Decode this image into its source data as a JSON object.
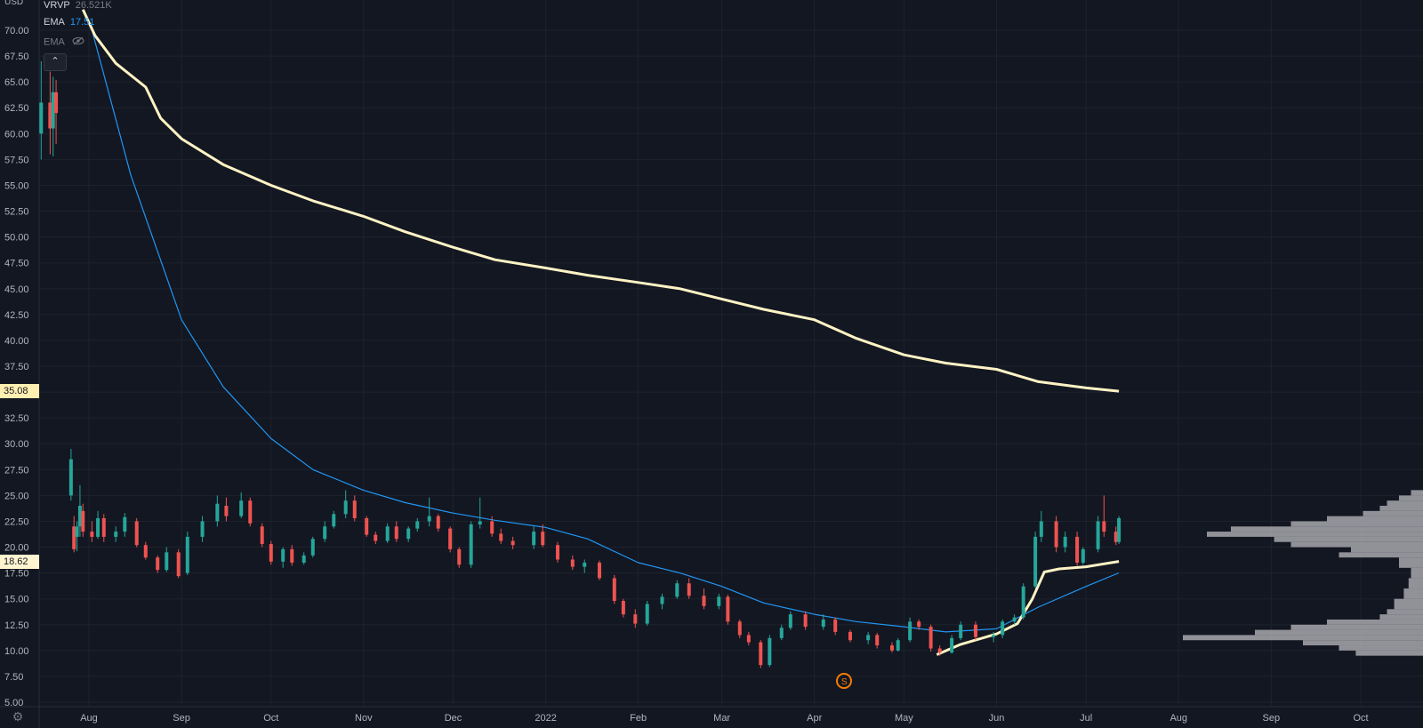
{
  "colors": {
    "background": "#131722",
    "grid": "#1e222d",
    "axis_text": "#b2b5be",
    "up": "#26a69a",
    "down": "#ef5350",
    "ema_fast": "#2196f3",
    "ema_slow": "#fff3c4",
    "vrvp": "#a8a8ad",
    "badge_slow": "#ffefb0",
    "badge_price": "#fff5d0"
  },
  "legend": [
    {
      "name": "VRVP",
      "value": "26.521K",
      "value_color": "#787b86",
      "label_color": "#d1d4dc"
    },
    {
      "name": "EMA",
      "value": "17.51",
      "value_color": "#2196f3",
      "label_color": "#d1d4dc"
    },
    {
      "name": "EMA",
      "value": "",
      "value_color": "#787b86",
      "label_color": "#787b86",
      "hidden_icon": "eye-crossed-icon"
    }
  ],
  "collapse_icon": "chevron-up-icon",
  "price_badges": [
    {
      "label": "35.08",
      "value": 35.08,
      "color": "#ffefb0"
    },
    {
      "label": "18.62",
      "value": 18.62,
      "color": "#fff5d0"
    }
  ],
  "event_marker": {
    "label": "S",
    "icon": "split-event-icon",
    "date": "2022-04-11"
  },
  "settings_icon": "gear-icon",
  "chart_data": {
    "type": "candlestick",
    "currency": "USD",
    "y_ticks": [
      "5.00",
      "7.50",
      "10.00",
      "12.50",
      "15.00",
      "17.50",
      "20.00",
      "22.50",
      "25.00",
      "27.50",
      "30.00",
      "32.50",
      "35.00",
      "37.50",
      "40.00",
      "42.50",
      "45.00",
      "47.50",
      "50.00",
      "52.50",
      "55.00",
      "57.50",
      "60.00",
      "62.50",
      "65.00",
      "67.50",
      "70.00"
    ],
    "ylim": [
      5.0,
      72.0
    ],
    "x_ticks": [
      {
        "label": "Aug",
        "date": "2021-08-01"
      },
      {
        "label": "Sep",
        "date": "2021-09-01"
      },
      {
        "label": "Oct",
        "date": "2021-10-01"
      },
      {
        "label": "Nov",
        "date": "2021-11-01"
      },
      {
        "label": "Dec",
        "date": "2021-12-01"
      },
      {
        "label": "2022",
        "date": "2022-01-01"
      },
      {
        "label": "Feb",
        "date": "2022-02-01"
      },
      {
        "label": "Mar",
        "date": "2022-03-01"
      },
      {
        "label": "Apr",
        "date": "2022-04-01"
      },
      {
        "label": "May",
        "date": "2022-05-01"
      },
      {
        "label": "Jun",
        "date": "2022-06-01"
      },
      {
        "label": "Jul",
        "date": "2022-07-01"
      },
      {
        "label": "Aug",
        "date": "2022-08-01"
      },
      {
        "label": "Sep",
        "date": "2022-09-01"
      },
      {
        "label": "Oct",
        "date": "2022-10-01"
      }
    ],
    "candles": [
      [
        "2021-07-16",
        60.0,
        67.0,
        57.5,
        63.0
      ],
      [
        "2021-07-19",
        63.0,
        66.0,
        58.0,
        60.5
      ],
      [
        "2021-07-20",
        60.5,
        65.5,
        57.8,
        64.0
      ],
      [
        "2021-07-21",
        64.0,
        65.2,
        59.0,
        62.0
      ],
      [
        "2021-07-26",
        25.0,
        29.5,
        24.5,
        28.5
      ],
      [
        "2021-07-27",
        22.0,
        23.0,
        19.5,
        19.8
      ],
      [
        "2021-07-28",
        21.0,
        22.5,
        19.6,
        22.0
      ],
      [
        "2021-07-29",
        22.0,
        26.0,
        21.0,
        24.0
      ],
      [
        "2021-07-30",
        23.5,
        24.2,
        21.0,
        21.5
      ],
      [
        "2021-08-02",
        21.5,
        22.5,
        20.5,
        21.0
      ],
      [
        "2021-08-04",
        21.0,
        23.5,
        20.8,
        22.8
      ],
      [
        "2021-08-06",
        22.8,
        23.2,
        20.5,
        21.0
      ],
      [
        "2021-08-10",
        21.0,
        22.0,
        20.5,
        21.5
      ],
      [
        "2021-08-13",
        21.5,
        23.3,
        21.0,
        22.9
      ],
      [
        "2021-08-17",
        22.5,
        22.8,
        20.0,
        20.2
      ],
      [
        "2021-08-20",
        20.2,
        20.5,
        18.8,
        19.0
      ],
      [
        "2021-08-24",
        19.0,
        19.2,
        17.5,
        17.8
      ],
      [
        "2021-08-27",
        17.8,
        20.0,
        17.6,
        19.5
      ],
      [
        "2021-08-31",
        19.5,
        19.8,
        17.0,
        17.2
      ],
      [
        "2021-09-03",
        17.5,
        21.5,
        17.3,
        21.0
      ],
      [
        "2021-09-08",
        21.0,
        23.0,
        20.5,
        22.5
      ],
      [
        "2021-09-13",
        22.5,
        25.0,
        22.0,
        24.2
      ],
      [
        "2021-09-16",
        24.0,
        24.8,
        22.5,
        23.0
      ],
      [
        "2021-09-21",
        23.0,
        25.3,
        22.8,
        24.5
      ],
      [
        "2021-09-24",
        24.5,
        24.8,
        22.0,
        22.3
      ],
      [
        "2021-09-28",
        22.0,
        22.3,
        20.0,
        20.3
      ],
      [
        "2021-10-01",
        20.3,
        20.6,
        18.3,
        18.6
      ],
      [
        "2021-10-05",
        18.6,
        20.0,
        18.0,
        19.8
      ],
      [
        "2021-10-08",
        19.8,
        20.2,
        18.2,
        18.5
      ],
      [
        "2021-10-12",
        18.5,
        19.5,
        18.3,
        19.2
      ],
      [
        "2021-10-15",
        19.2,
        21.0,
        19.0,
        20.8
      ],
      [
        "2021-10-19",
        20.8,
        22.5,
        20.5,
        22.0
      ],
      [
        "2021-10-22",
        22.0,
        23.5,
        21.8,
        23.2
      ],
      [
        "2021-10-26",
        23.2,
        25.5,
        22.8,
        24.5
      ],
      [
        "2021-10-29",
        24.5,
        25.0,
        22.5,
        22.8
      ],
      [
        "2021-11-02",
        22.8,
        23.0,
        21.0,
        21.2
      ],
      [
        "2021-11-05",
        21.2,
        21.5,
        20.3,
        20.6
      ],
      [
        "2021-11-09",
        20.6,
        22.3,
        20.4,
        22.0
      ],
      [
        "2021-11-12",
        22.0,
        22.5,
        20.5,
        20.8
      ],
      [
        "2021-11-16",
        20.8,
        22.0,
        20.5,
        21.8
      ],
      [
        "2021-11-19",
        21.8,
        22.8,
        21.5,
        22.5
      ],
      [
        "2021-11-23",
        22.5,
        24.8,
        22.0,
        23.0
      ],
      [
        "2021-11-26",
        23.0,
        23.2,
        21.5,
        21.8
      ],
      [
        "2021-11-30",
        21.8,
        22.0,
        19.5,
        19.8
      ],
      [
        "2021-12-03",
        19.8,
        20.0,
        18.0,
        18.3
      ],
      [
        "2021-12-07",
        18.3,
        22.5,
        18.0,
        22.2
      ],
      [
        "2021-12-10",
        22.2,
        24.8,
        21.8,
        22.5
      ],
      [
        "2021-12-14",
        22.5,
        23.0,
        21.0,
        21.3
      ],
      [
        "2021-12-17",
        21.3,
        21.8,
        20.3,
        20.6
      ],
      [
        "2021-12-21",
        20.6,
        21.0,
        19.8,
        20.2
      ],
      [
        "2021-12-28",
        20.2,
        22.0,
        19.8,
        21.5
      ],
      [
        "2021-12-31",
        21.5,
        22.2,
        20.0,
        20.2
      ],
      [
        "2022-01-05",
        20.2,
        20.5,
        18.5,
        18.8
      ],
      [
        "2022-01-10",
        18.8,
        19.2,
        17.8,
        18.1
      ],
      [
        "2022-01-14",
        18.1,
        18.8,
        17.5,
        18.5
      ],
      [
        "2022-01-19",
        18.5,
        18.7,
        16.8,
        17.0
      ],
      [
        "2022-01-24",
        17.0,
        17.3,
        14.5,
        14.8
      ],
      [
        "2022-01-27",
        14.8,
        15.0,
        13.2,
        13.5
      ],
      [
        "2022-01-31",
        13.5,
        14.0,
        12.2,
        12.6
      ],
      [
        "2022-02-04",
        12.6,
        14.8,
        12.4,
        14.5
      ],
      [
        "2022-02-09",
        14.5,
        15.5,
        14.0,
        15.2
      ],
      [
        "2022-02-14",
        15.2,
        16.8,
        15.0,
        16.5
      ],
      [
        "2022-02-18",
        16.5,
        17.0,
        15.0,
        15.3
      ],
      [
        "2022-02-23",
        15.3,
        16.0,
        14.0,
        14.3
      ],
      [
        "2022-02-28",
        14.3,
        15.5,
        14.0,
        15.2
      ],
      [
        "2022-03-03",
        15.2,
        15.4,
        12.5,
        12.8
      ],
      [
        "2022-03-07",
        12.8,
        13.0,
        11.2,
        11.5
      ],
      [
        "2022-03-10",
        11.5,
        11.8,
        10.5,
        10.8
      ],
      [
        "2022-03-14",
        10.8,
        11.0,
        8.3,
        8.6
      ],
      [
        "2022-03-17",
        8.6,
        11.5,
        8.4,
        11.2
      ],
      [
        "2022-03-21",
        11.2,
        12.5,
        11.0,
        12.2
      ],
      [
        "2022-03-24",
        12.2,
        13.8,
        12.0,
        13.5
      ],
      [
        "2022-03-29",
        13.5,
        13.8,
        12.0,
        12.3
      ],
      [
        "2022-04-04",
        12.3,
        13.5,
        12.0,
        13.0
      ],
      [
        "2022-04-08",
        13.0,
        13.2,
        11.5,
        11.8
      ],
      [
        "2022-04-13",
        11.8,
        12.0,
        10.8,
        11.0
      ],
      [
        "2022-04-19",
        11.0,
        11.8,
        10.6,
        11.5
      ],
      [
        "2022-04-22",
        11.5,
        11.7,
        10.2,
        10.5
      ],
      [
        "2022-04-27",
        10.5,
        10.8,
        9.8,
        10.0
      ],
      [
        "2022-04-29",
        10.0,
        11.2,
        9.9,
        11.0
      ],
      [
        "2022-05-03",
        11.0,
        13.2,
        10.8,
        12.8
      ],
      [
        "2022-05-06",
        12.8,
        13.0,
        12.0,
        12.3
      ],
      [
        "2022-05-10",
        12.3,
        12.5,
        9.9,
        10.2
      ],
      [
        "2022-05-13",
        10.2,
        10.5,
        9.5,
        9.8
      ],
      [
        "2022-05-17",
        9.8,
        11.5,
        9.7,
        11.2
      ],
      [
        "2022-05-20",
        11.2,
        12.8,
        11.0,
        12.5
      ],
      [
        "2022-05-25",
        12.5,
        12.8,
        11.0,
        11.3
      ],
      [
        "2022-05-31",
        11.3,
        11.8,
        10.8,
        11.5
      ],
      [
        "2022-06-03",
        11.5,
        13.0,
        11.2,
        12.8
      ],
      [
        "2022-06-07",
        12.8,
        13.5,
        12.5,
        13.2
      ],
      [
        "2022-06-10",
        13.2,
        16.5,
        13.0,
        16.2
      ],
      [
        "2022-06-14",
        16.2,
        21.5,
        16.0,
        21.0
      ],
      [
        "2022-06-16",
        21.0,
        23.5,
        20.5,
        22.5
      ],
      [
        "2022-06-21",
        22.5,
        23.0,
        19.5,
        20.0
      ],
      [
        "2022-06-24",
        20.0,
        21.5,
        19.5,
        21.0
      ],
      [
        "2022-06-28",
        21.0,
        21.5,
        18.2,
        18.5
      ],
      [
        "2022-06-30",
        18.5,
        20.0,
        18.3,
        19.8
      ],
      [
        "2022-07-05",
        19.8,
        23.0,
        19.5,
        22.5
      ],
      [
        "2022-07-07",
        22.5,
        25.0,
        21.0,
        21.5
      ],
      [
        "2022-07-11",
        21.5,
        22.0,
        20.2,
        20.5
      ],
      [
        "2022-07-12",
        20.5,
        23.0,
        20.3,
        22.8
      ]
    ],
    "ema_fast": {
      "color": "#2196f3",
      "value": 17.51,
      "points": [
        [
          "2021-08-02",
          70.0
        ],
        [
          "2021-08-15",
          56.0
        ],
        [
          "2021-09-01",
          42.0
        ],
        [
          "2021-09-15",
          35.5
        ],
        [
          "2021-10-01",
          30.5
        ],
        [
          "2021-10-15",
          27.5
        ],
        [
          "2021-11-01",
          25.5
        ],
        [
          "2021-11-15",
          24.3
        ],
        [
          "2021-12-01",
          23.3
        ],
        [
          "2021-12-15",
          22.6
        ],
        [
          "2022-01-01",
          21.9
        ],
        [
          "2022-01-15",
          20.8
        ],
        [
          "2022-02-01",
          18.5
        ],
        [
          "2022-02-15",
          17.5
        ],
        [
          "2022-03-01",
          16.2
        ],
        [
          "2022-03-15",
          14.6
        ],
        [
          "2022-04-01",
          13.5
        ],
        [
          "2022-04-15",
          12.8
        ],
        [
          "2022-05-01",
          12.3
        ],
        [
          "2022-05-15",
          11.8
        ],
        [
          "2022-06-01",
          12.1
        ],
        [
          "2022-06-15",
          14.2
        ],
        [
          "2022-07-01",
          16.2
        ],
        [
          "2022-07-12",
          17.51
        ]
      ]
    },
    "ema_slow": {
      "color": "#fff3c4",
      "value": 35.08,
      "points": [
        [
          "2021-07-30",
          72.0
        ],
        [
          "2021-08-03",
          69.5
        ],
        [
          "2021-08-10",
          66.8
        ],
        [
          "2021-08-20",
          64.5
        ],
        [
          "2021-08-25",
          61.5
        ],
        [
          "2021-09-01",
          59.5
        ],
        [
          "2021-09-15",
          57.0
        ],
        [
          "2021-10-01",
          55.0
        ],
        [
          "2021-10-15",
          53.5
        ],
        [
          "2021-11-01",
          52.0
        ],
        [
          "2021-11-15",
          50.5
        ],
        [
          "2021-12-01",
          49.0
        ],
        [
          "2021-12-15",
          47.8
        ],
        [
          "2022-01-01",
          47.0
        ],
        [
          "2022-01-15",
          46.3
        ],
        [
          "2022-02-01",
          45.6
        ],
        [
          "2022-02-15",
          45.0
        ],
        [
          "2022-03-01",
          44.0
        ],
        [
          "2022-03-15",
          43.0
        ],
        [
          "2022-04-01",
          42.0
        ],
        [
          "2022-04-15",
          40.2
        ],
        [
          "2022-05-01",
          38.6
        ],
        [
          "2022-05-15",
          37.8
        ],
        [
          "2022-06-01",
          37.2
        ],
        [
          "2022-06-15",
          36.0
        ],
        [
          "2022-07-01",
          35.4
        ],
        [
          "2022-07-12",
          35.08
        ]
      ]
    },
    "ema_short_highlight": {
      "color": "#fff3c4",
      "value": 18.62,
      "points": [
        [
          "2022-05-12",
          9.6
        ],
        [
          "2022-05-20",
          10.6
        ],
        [
          "2022-06-01",
          11.6
        ],
        [
          "2022-06-08",
          12.6
        ],
        [
          "2022-06-13",
          15.0
        ],
        [
          "2022-06-17",
          17.6
        ],
        [
          "2022-06-22",
          17.9
        ],
        [
          "2022-07-01",
          18.1
        ],
        [
          "2022-07-12",
          18.62
        ]
      ]
    },
    "vrvp_profile": [
      [
        9.5,
        0.28
      ],
      [
        10.0,
        0.35
      ],
      [
        10.5,
        0.5
      ],
      [
        11.0,
        1.0
      ],
      [
        11.5,
        0.7
      ],
      [
        12.0,
        0.55
      ],
      [
        12.5,
        0.4
      ],
      [
        13.0,
        0.18
      ],
      [
        13.5,
        0.15
      ],
      [
        14.0,
        0.12
      ],
      [
        15.0,
        0.08
      ],
      [
        16.0,
        0.06
      ],
      [
        17.0,
        0.05
      ],
      [
        18.0,
        0.1
      ],
      [
        19.0,
        0.35
      ],
      [
        19.5,
        0.3
      ],
      [
        20.0,
        0.55
      ],
      [
        20.5,
        0.62
      ],
      [
        21.0,
        0.9
      ],
      [
        21.5,
        0.8
      ],
      [
        22.0,
        0.55
      ],
      [
        22.5,
        0.4
      ],
      [
        23.0,
        0.25
      ],
      [
        23.5,
        0.18
      ],
      [
        24.0,
        0.15
      ],
      [
        24.5,
        0.1
      ],
      [
        25.0,
        0.05
      ]
    ]
  }
}
